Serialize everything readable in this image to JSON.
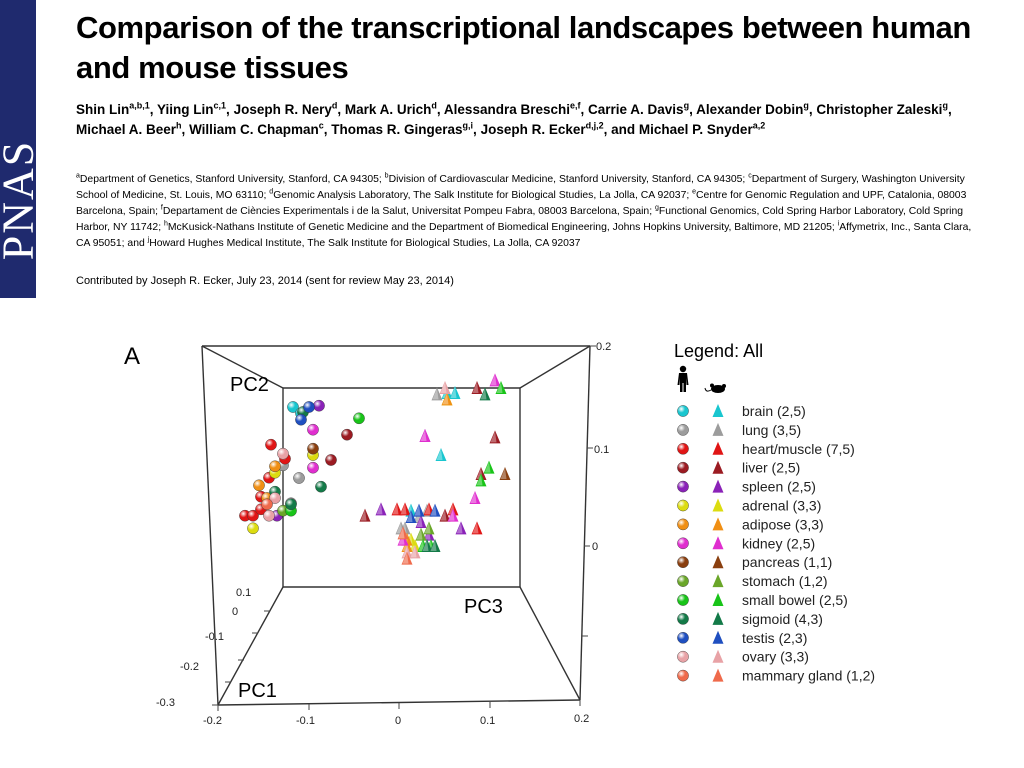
{
  "journal": {
    "name": "PNAS"
  },
  "paper": {
    "title": "Comparison of the transcriptional landscapes between human and mouse tissues",
    "authors": [
      {
        "name": "Shin Lin",
        "sup": "a,b,1",
        "sep": ", "
      },
      {
        "name": "Yiing Lin",
        "sup": "c,1",
        "sep": ", "
      },
      {
        "name": "Joseph R. Nery",
        "sup": "d",
        "sep": ", "
      },
      {
        "name": "Mark A. Urich",
        "sup": "d",
        "sep": ", "
      },
      {
        "name": "Alessandra Breschi",
        "sup": "e,f",
        "sep": ", "
      },
      {
        "name": "Carrie A. Davis",
        "sup": "g",
        "sep": ", "
      },
      {
        "name": "Alexander Dobin",
        "sup": "g",
        "sep": ", "
      },
      {
        "name": "Christopher Zaleski",
        "sup": "g",
        "sep": ", "
      },
      {
        "name": "Michael A. Beer",
        "sup": "h",
        "sep": ", "
      },
      {
        "name": "William C. Chapman",
        "sup": "c",
        "sep": ", "
      },
      {
        "name": "Thomas R. Gingeras",
        "sup": "g,i",
        "sep": ", "
      },
      {
        "name": "Joseph R. Ecker",
        "sup": "d,j,2",
        "sep": ", "
      },
      {
        "name": "and Michael P. Snyder",
        "sup": "a,2",
        "sep": ""
      }
    ],
    "affiliations": [
      {
        "sup": "a",
        "text": "Department of Genetics, Stanford University, Stanford, CA 94305; "
      },
      {
        "sup": "b",
        "text": "Division of Cardiovascular Medicine, Stanford University, Stanford, CA 94305; "
      },
      {
        "sup": "c",
        "text": "Department of Surgery, Washington University School of Medicine, St. Louis, MO 63110; "
      },
      {
        "sup": "d",
        "text": "Genomic Analysis Laboratory, The Salk Institute for Biological Studies, La Jolla, CA 92037; "
      },
      {
        "sup": "e",
        "text": "Centre for Genomic Regulation and UPF, Catalonia, 08003 Barcelona, Spain; "
      },
      {
        "sup": "f",
        "text": "Departament de Ciències Experimentals i de la Salut, Universitat Pompeu Fabra, 08003 Barcelona, Spain; "
      },
      {
        "sup": "g",
        "text": "Functional Genomics, Cold Spring Harbor Laboratory, Cold Spring Harbor, NY 11742; "
      },
      {
        "sup": "h",
        "text": "McKusick-Nathans Institute of Genetic Medicine and the Department of Biomedical Engineering, Johns Hopkins University, Baltimore, MD 21205; "
      },
      {
        "sup": "i",
        "text": "Affymetrix, Inc., Santa Clara, CA 95051; and "
      },
      {
        "sup": "j",
        "text": "Howard Hughes Medical Institute, The Salk Institute for Biological Studies, La Jolla, CA 92037"
      }
    ],
    "contributed": "Contributed by Joseph R. Ecker, July 23, 2014 (sent for review May 23, 2014)"
  },
  "chart_data": {
    "type": "scatter",
    "panel_label": "A",
    "projection": "3d",
    "axes": {
      "x": {
        "label": "PC1",
        "ticks": [
          "-0.2",
          "-0.1",
          "0",
          "0.1",
          "0.2"
        ],
        "range": [
          -0.2,
          0.2
        ]
      },
      "y": {
        "label": "PC2",
        "ticks": [
          "-0.3",
          "-0.2",
          "-0.1",
          "0",
          "0.1"
        ],
        "range": [
          -0.3,
          0.1
        ]
      },
      "z": {
        "label": "PC3",
        "ticks": [
          "0",
          "0.1",
          "0.2"
        ],
        "range": [
          -0.1,
          0.2
        ]
      }
    },
    "legend": {
      "title": "Legend: All",
      "position": "right",
      "species": [
        {
          "name": "human",
          "icon": "human-silhouette-icon",
          "marker": "sphere"
        },
        {
          "name": "mouse",
          "icon": "mouse-silhouette-icon",
          "marker": "triangle"
        }
      ],
      "items": [
        {
          "label": "brain (2,5)",
          "color": "#19c6cf"
        },
        {
          "label": "lung (3,5)",
          "color": "#9c9c9c"
        },
        {
          "label": "heart/muscle (7,5)",
          "color": "#e01515"
        },
        {
          "label": "liver (2,5)",
          "color": "#9b1b22"
        },
        {
          "label": "spleen (2,5)",
          "color": "#8a22b8"
        },
        {
          "label": "adrenal (3,3)",
          "color": "#dcdc10"
        },
        {
          "label": "adipose (3,3)",
          "color": "#f08f14"
        },
        {
          "label": "kidney (2,5)",
          "color": "#e02ecf"
        },
        {
          "label": "pancreas (1,1)",
          "color": "#8a3f0f"
        },
        {
          "label": "stomach (1,2)",
          "color": "#6aa629"
        },
        {
          "label": "small bowel (2,5)",
          "color": "#18c418"
        },
        {
          "label": "sigmoid (4,3)",
          "color": "#137a48"
        },
        {
          "label": "testis (2,3)",
          "color": "#1f4fc0"
        },
        {
          "label": "ovary (3,3)",
          "color": "#e8a2a6"
        },
        {
          "label": "mammary gland (1,2)",
          "color": "#ef6a4b"
        }
      ]
    },
    "human_points": [
      {
        "tissue": "brain",
        "pc1": -0.12,
        "pc2": 0.13,
        "pc3": 0.16
      },
      {
        "tissue": "brain",
        "pc1": -0.11,
        "pc2": 0.12,
        "pc3": 0.16
      },
      {
        "tissue": "lung",
        "pc1": -0.13,
        "pc2": 0.04,
        "pc3": 0.17
      },
      {
        "tissue": "lung",
        "pc1": -0.11,
        "pc2": 0.02,
        "pc3": 0.17
      },
      {
        "tissue": "lung",
        "pc1": -0.12,
        "pc2": -0.02,
        "pc3": 0.17
      },
      {
        "tissue": "heart/muscle",
        "pc1": -0.16,
        "pc2": 0.06,
        "pc3": 0.11
      },
      {
        "tissue": "heart/muscle",
        "pc1": -0.19,
        "pc2": -0.05,
        "pc3": 0.12
      },
      {
        "tissue": "heart/muscle",
        "pc1": -0.18,
        "pc2": -0.05,
        "pc3": 0.12
      },
      {
        "tissue": "heart/muscle",
        "pc1": -0.17,
        "pc2": -0.04,
        "pc3": 0.12
      },
      {
        "tissue": "heart/muscle",
        "pc1": -0.17,
        "pc2": -0.02,
        "pc3": 0.12
      },
      {
        "tissue": "heart/muscle",
        "pc1": -0.16,
        "pc2": 0.01,
        "pc3": 0.12
      },
      {
        "tissue": "heart/muscle",
        "pc1": -0.14,
        "pc2": 0.04,
        "pc3": 0.12
      },
      {
        "tissue": "liver",
        "pc1": -0.06,
        "pc2": 0.08,
        "pc3": 0.13
      },
      {
        "tissue": "liver",
        "pc1": -0.08,
        "pc2": 0.04,
        "pc3": 0.13
      },
      {
        "tissue": "spleen",
        "pc1": -0.09,
        "pc2": 0.13,
        "pc3": 0.15
      },
      {
        "tissue": "spleen",
        "pc1": -0.15,
        "pc2": -0.05,
        "pc3": 0.12
      },
      {
        "tissue": "adrenal",
        "pc1": -0.1,
        "pc2": 0.05,
        "pc3": 0.14
      },
      {
        "tissue": "adrenal",
        "pc1": -0.18,
        "pc2": -0.07,
        "pc3": 0.12
      },
      {
        "tissue": "adrenal",
        "pc1": -0.15,
        "pc2": 0.02,
        "pc3": 0.13
      },
      {
        "tissue": "adipose",
        "pc1": -0.15,
        "pc2": 0.03,
        "pc3": 0.13
      },
      {
        "tissue": "adipose",
        "pc1": -0.16,
        "pc2": -0.02,
        "pc3": 0.13
      },
      {
        "tissue": "adipose",
        "pc1": -0.17,
        "pc2": 0.0,
        "pc3": 0.13
      },
      {
        "tissue": "kidney",
        "pc1": -0.1,
        "pc2": 0.09,
        "pc3": 0.14
      },
      {
        "tissue": "kidney",
        "pc1": -0.1,
        "pc2": 0.03,
        "pc3": 0.14
      },
      {
        "tissue": "pancreas",
        "pc1": -0.1,
        "pc2": 0.06,
        "pc3": 0.14
      },
      {
        "tissue": "stomach",
        "pc1": -0.14,
        "pc2": -0.04,
        "pc3": 0.13
      },
      {
        "tissue": "small bowel",
        "pc1": -0.04,
        "pc2": 0.11,
        "pc3": 0.15
      },
      {
        "tissue": "small bowel",
        "pc1": -0.13,
        "pc2": -0.04,
        "pc3": 0.13
      },
      {
        "tissue": "sigmoid",
        "pc1": -0.11,
        "pc2": 0.12,
        "pc3": 0.15
      },
      {
        "tissue": "sigmoid",
        "pc1": -0.09,
        "pc2": 0.0,
        "pc3": 0.14
      },
      {
        "tissue": "sigmoid",
        "pc1": -0.15,
        "pc2": -0.01,
        "pc3": 0.13
      },
      {
        "tissue": "sigmoid",
        "pc1": -0.13,
        "pc2": -0.03,
        "pc3": 0.13
      },
      {
        "tissue": "testis",
        "pc1": -0.11,
        "pc2": 0.11,
        "pc3": 0.16
      },
      {
        "tissue": "testis",
        "pc1": -0.1,
        "pc2": 0.13,
        "pc3": 0.16
      },
      {
        "tissue": "ovary",
        "pc1": -0.14,
        "pc2": 0.05,
        "pc3": 0.13
      },
      {
        "tissue": "ovary",
        "pc1": -0.16,
        "pc2": -0.05,
        "pc3": 0.12
      },
      {
        "tissue": "ovary",
        "pc1": -0.15,
        "pc2": -0.02,
        "pc3": 0.13
      },
      {
        "tissue": "mammary gland",
        "pc1": -0.16,
        "pc2": -0.03,
        "pc3": 0.13
      }
    ],
    "mouse_points": [
      {
        "tissue": "brain",
        "pc1": 0.07,
        "pc2": 0.15,
        "pc3": 0.15
      },
      {
        "tissue": "brain",
        "pc1": 0.08,
        "pc2": 0.15,
        "pc3": 0.15
      },
      {
        "tissue": "brain",
        "pc1": 0.06,
        "pc2": 0.05,
        "pc3": 0.14
      },
      {
        "tissue": "brain",
        "pc1": 0.02,
        "pc2": -0.04,
        "pc3": 0.13
      },
      {
        "tissue": "brain",
        "pc1": 0.03,
        "pc2": -0.05,
        "pc3": 0.13
      },
      {
        "tissue": "lung",
        "pc1": 0.06,
        "pc2": 0.15,
        "pc3": 0.16
      },
      {
        "tissue": "lung",
        "pc1": 0.04,
        "pc2": -0.04,
        "pc3": 0.13
      },
      {
        "tissue": "lung",
        "pc1": 0.03,
        "pc2": -0.05,
        "pc3": 0.13
      },
      {
        "tissue": "lung",
        "pc1": 0.01,
        "pc2": -0.07,
        "pc3": 0.12
      },
      {
        "tissue": "lung",
        "pc1": 0.005,
        "pc2": -0.07,
        "pc3": 0.12
      },
      {
        "tissue": "heart/muscle",
        "pc1": 0.0,
        "pc2": -0.04,
        "pc3": 0.12
      },
      {
        "tissue": "heart/muscle",
        "pc1": 0.01,
        "pc2": -0.04,
        "pc3": 0.12
      },
      {
        "tissue": "heart/muscle",
        "pc1": 0.04,
        "pc2": -0.04,
        "pc3": 0.12
      },
      {
        "tissue": "heart/muscle",
        "pc1": 0.07,
        "pc2": -0.04,
        "pc3": 0.12
      },
      {
        "tissue": "heart/muscle",
        "pc1": 0.1,
        "pc2": -0.07,
        "pc3": 0.12
      },
      {
        "tissue": "liver",
        "pc1": 0.11,
        "pc2": 0.16,
        "pc3": 0.16
      },
      {
        "tissue": "liver",
        "pc1": 0.13,
        "pc2": 0.08,
        "pc3": 0.15
      },
      {
        "tissue": "liver",
        "pc1": 0.11,
        "pc2": 0.02,
        "pc3": 0.14
      },
      {
        "tissue": "liver",
        "pc1": -0.04,
        "pc2": -0.05,
        "pc3": 0.12
      },
      {
        "tissue": "liver",
        "pc1": 0.06,
        "pc2": -0.05,
        "pc3": 0.12
      },
      {
        "tissue": "spleen",
        "pc1": 0.04,
        "pc2": 0.08,
        "pc3": 0.14
      },
      {
        "tissue": "spleen",
        "pc1": -0.02,
        "pc2": -0.04,
        "pc3": 0.12
      },
      {
        "tissue": "spleen",
        "pc1": 0.04,
        "pc2": -0.08,
        "pc3": 0.12
      },
      {
        "tissue": "spleen",
        "pc1": 0.08,
        "pc2": -0.07,
        "pc3": 0.12
      },
      {
        "tissue": "spleen",
        "pc1": 0.03,
        "pc2": -0.06,
        "pc3": 0.12
      },
      {
        "tissue": "adrenal",
        "pc1": 0.07,
        "pc2": 0.14,
        "pc3": 0.15
      },
      {
        "tissue": "adrenal",
        "pc1": 0.02,
        "pc2": -0.1,
        "pc3": 0.11
      },
      {
        "tissue": "adrenal",
        "pc1": 0.015,
        "pc2": -0.09,
        "pc3": 0.11
      },
      {
        "tissue": "adipose",
        "pc1": 0.07,
        "pc2": 0.14,
        "pc3": 0.15
      },
      {
        "tissue": "adipose",
        "pc1": 0.01,
        "pc2": -0.09,
        "pc3": 0.11
      },
      {
        "tissue": "adipose",
        "pc1": 0.01,
        "pc2": -0.1,
        "pc3": 0.11
      },
      {
        "tissue": "kidney",
        "pc1": 0.13,
        "pc2": 0.17,
        "pc3": 0.15
      },
      {
        "tissue": "kidney",
        "pc1": 0.04,
        "pc2": 0.08,
        "pc3": 0.14
      },
      {
        "tissue": "kidney",
        "pc1": 0.1,
        "pc2": -0.02,
        "pc3": 0.13
      },
      {
        "tissue": "kidney",
        "pc1": 0.07,
        "pc2": -0.05,
        "pc3": 0.12
      },
      {
        "tissue": "kidney",
        "pc1": 0.005,
        "pc2": -0.09,
        "pc3": 0.11
      },
      {
        "tissue": "pancreas",
        "pc1": 0.14,
        "pc2": 0.02,
        "pc3": 0.14
      },
      {
        "tissue": "stomach",
        "pc1": 0.03,
        "pc2": -0.08,
        "pc3": 0.12
      },
      {
        "tissue": "stomach",
        "pc1": 0.04,
        "pc2": -0.07,
        "pc3": 0.12
      },
      {
        "tissue": "small bowel",
        "pc1": 0.14,
        "pc2": 0.16,
        "pc3": 0.16
      },
      {
        "tissue": "small bowel",
        "pc1": 0.12,
        "pc2": 0.03,
        "pc3": 0.14
      },
      {
        "tissue": "small bowel",
        "pc1": 0.11,
        "pc2": 0.01,
        "pc3": 0.14
      },
      {
        "tissue": "small bowel",
        "pc1": 0.03,
        "pc2": -0.1,
        "pc3": 0.11
      },
      {
        "tissue": "small bowel",
        "pc1": 0.04,
        "pc2": -0.1,
        "pc3": 0.11
      },
      {
        "tissue": "sigmoid",
        "pc1": 0.12,
        "pc2": 0.15,
        "pc3": 0.16
      },
      {
        "tissue": "sigmoid",
        "pc1": 0.035,
        "pc2": -0.1,
        "pc3": 0.11
      },
      {
        "tissue": "sigmoid",
        "pc1": 0.045,
        "pc2": -0.1,
        "pc3": 0.11
      },
      {
        "tissue": "testis",
        "pc1": 0.03,
        "pc2": -0.04,
        "pc3": 0.13
      },
      {
        "tissue": "testis",
        "pc1": 0.02,
        "pc2": -0.05,
        "pc3": 0.13
      },
      {
        "tissue": "testis",
        "pc1": 0.05,
        "pc2": -0.04,
        "pc3": 0.13
      },
      {
        "tissue": "ovary",
        "pc1": 0.07,
        "pc2": 0.16,
        "pc3": 0.16
      },
      {
        "tissue": "ovary",
        "pc1": 0.01,
        "pc2": -0.11,
        "pc3": 0.11
      },
      {
        "tissue": "ovary",
        "pc1": 0.02,
        "pc2": -0.11,
        "pc3": 0.11
      },
      {
        "tissue": "mammary gland",
        "pc1": 0.005,
        "pc2": -0.08,
        "pc3": 0.11
      },
      {
        "tissue": "mammary gland",
        "pc1": 0.01,
        "pc2": -0.12,
        "pc3": 0.11
      }
    ]
  }
}
